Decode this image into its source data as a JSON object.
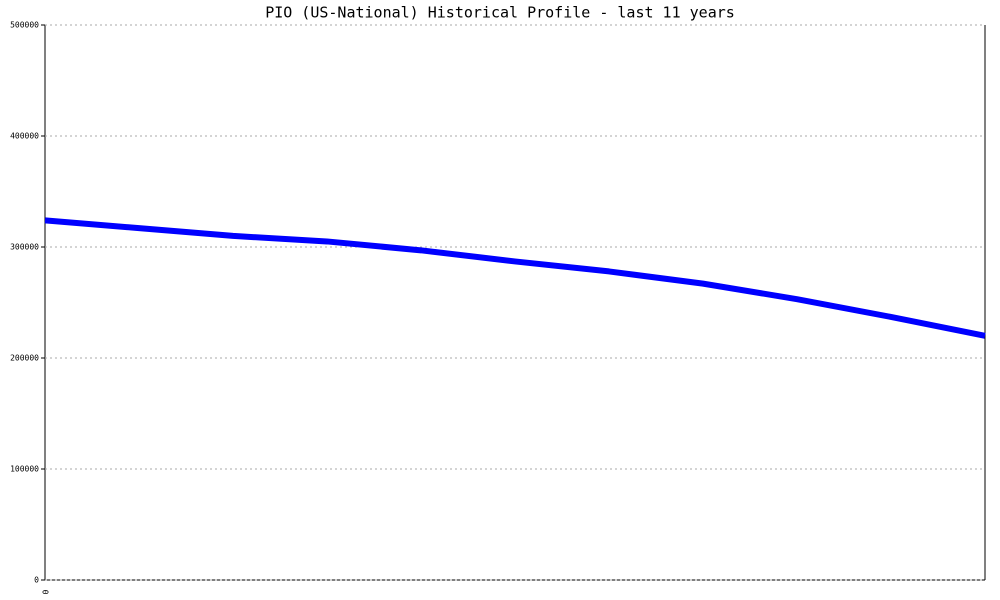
{
  "chart_data": {
    "type": "line",
    "title": "PIO (US-National) Historical Profile - last 11 years",
    "categories": [
      "0",
      null,
      null,
      null,
      null,
      null,
      null,
      null,
      null,
      null,
      null
    ],
    "series": [
      {
        "color": "#0000ff",
        "values": [
          324000,
          317000,
          310000,
          305000,
          297000,
          287000,
          278000,
          267000,
          253000,
          237000,
          220000
        ]
      }
    ],
    "ylim": [
      0,
      500000
    ],
    "yticks": [
      0,
      100000,
      200000,
      300000,
      400000,
      500000
    ],
    "grid": true
  }
}
